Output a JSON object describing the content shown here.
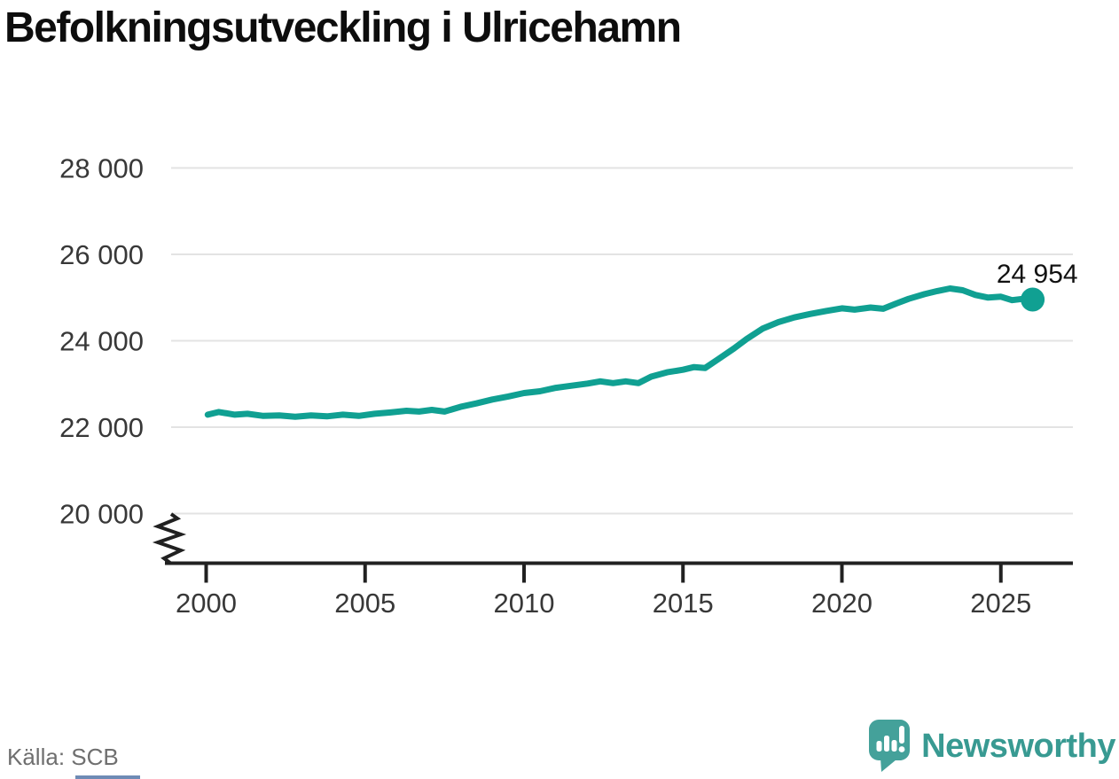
{
  "header": {
    "title": "Befolkningsutveckling i Ulricehamn"
  },
  "chart_data": {
    "type": "line",
    "title": "Befolkningsutveckling i Ulricehamn",
    "line_color": "#10a092",
    "grid_color": "#e3e3e3",
    "axis_color": "#212121",
    "tick_text_color": "#383838",
    "end_label_color": "#111111",
    "grid": "horizontal",
    "legend_position": "none",
    "x_ticks": [
      {
        "v": 2000,
        "label": "2000"
      },
      {
        "v": 2005,
        "label": "2005"
      },
      {
        "v": 2010,
        "label": "2010"
      },
      {
        "v": 2015,
        "label": "2015"
      },
      {
        "v": 2020,
        "label": "2020"
      },
      {
        "v": 2025,
        "label": "2025"
      }
    ],
    "y_ticks": [
      {
        "v": 28000,
        "label": "28 000"
      },
      {
        "v": 26000,
        "label": "26 000"
      },
      {
        "v": 24000,
        "label": "24 000"
      },
      {
        "v": 22000,
        "label": "22 000"
      },
      {
        "v": 20000,
        "label": "20 000"
      }
    ],
    "xlim": [
      1998.7,
      2027.3
    ],
    "ylim": [
      19500,
      28600
    ],
    "axis_break_below": 20000,
    "series": [
      {
        "name": "Befolkning i Ulricehamn",
        "points": [
          [
            2000.05,
            22290
          ],
          [
            2000.4,
            22350
          ],
          [
            2000.9,
            22290
          ],
          [
            2001.3,
            22310
          ],
          [
            2001.8,
            22260
          ],
          [
            2002.3,
            22270
          ],
          [
            2002.8,
            22240
          ],
          [
            2003.3,
            22270
          ],
          [
            2003.8,
            22250
          ],
          [
            2004.3,
            22290
          ],
          [
            2004.8,
            22260
          ],
          [
            2005.3,
            22310
          ],
          [
            2005.8,
            22340
          ],
          [
            2006.3,
            22380
          ],
          [
            2006.7,
            22360
          ],
          [
            2007.1,
            22400
          ],
          [
            2007.5,
            22360
          ],
          [
            2008.0,
            22470
          ],
          [
            2008.5,
            22550
          ],
          [
            2009.0,
            22640
          ],
          [
            2009.5,
            22710
          ],
          [
            2010.0,
            22790
          ],
          [
            2010.5,
            22830
          ],
          [
            2011.0,
            22910
          ],
          [
            2011.5,
            22960
          ],
          [
            2012.0,
            23010
          ],
          [
            2012.4,
            23060
          ],
          [
            2012.8,
            23020
          ],
          [
            2013.2,
            23060
          ],
          [
            2013.6,
            23020
          ],
          [
            2014.0,
            23170
          ],
          [
            2014.5,
            23270
          ],
          [
            2015.0,
            23330
          ],
          [
            2015.35,
            23390
          ],
          [
            2015.7,
            23370
          ],
          [
            2016.1,
            23570
          ],
          [
            2016.6,
            23820
          ],
          [
            2017.0,
            24040
          ],
          [
            2017.5,
            24280
          ],
          [
            2018.0,
            24430
          ],
          [
            2018.5,
            24540
          ],
          [
            2019.0,
            24620
          ],
          [
            2019.5,
            24690
          ],
          [
            2020.0,
            24750
          ],
          [
            2020.4,
            24720
          ],
          [
            2020.9,
            24770
          ],
          [
            2021.3,
            24740
          ],
          [
            2021.7,
            24860
          ],
          [
            2022.1,
            24970
          ],
          [
            2022.6,
            25080
          ],
          [
            2023.0,
            25150
          ],
          [
            2023.4,
            25210
          ],
          [
            2023.8,
            25170
          ],
          [
            2024.2,
            25060
          ],
          [
            2024.6,
            25000
          ],
          [
            2025.0,
            25020
          ],
          [
            2025.35,
            24940
          ],
          [
            2025.7,
            24970
          ],
          [
            2026.0,
            24954
          ]
        ]
      }
    ],
    "end_value": 24954,
    "end_label": "24 954"
  },
  "footer": {
    "source": "Källa: SCB",
    "brand": "Newsworthy",
    "brand_color": "#389a92",
    "logo_icon": "newsworthy-speech-bubble-chart-icon"
  }
}
